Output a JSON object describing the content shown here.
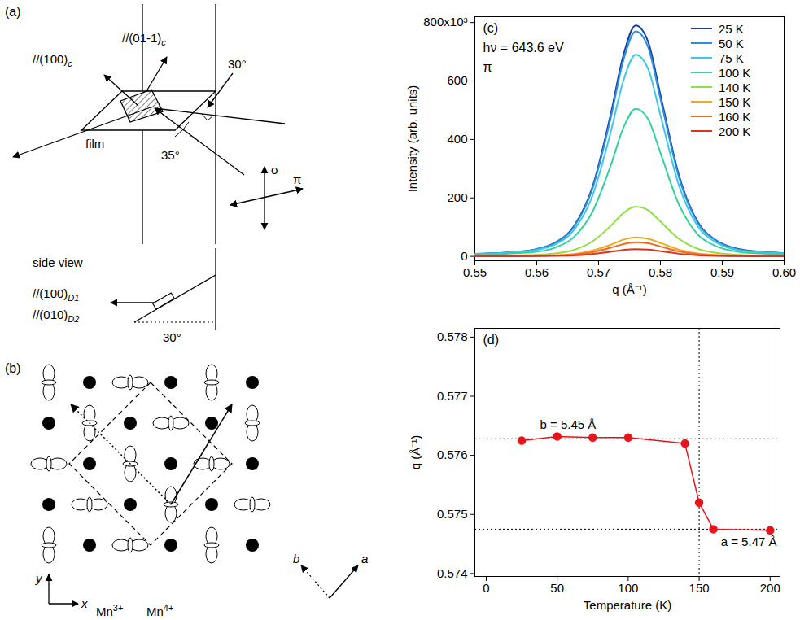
{
  "panels": {
    "a": {
      "label": "(a)",
      "texts": {
        "normal_100": {
          "text": "//(100)",
          "sub": "c"
        },
        "normal_01-1": {
          "text": "//(01-1)",
          "sub": "c"
        },
        "angle_top": "30°",
        "film": "film",
        "angle_bottom": "35°",
        "sigma": "σ",
        "pi": "π",
        "side_view": "side view",
        "side_100": {
          "text": "//(100)",
          "sub": "D1"
        },
        "side_010": {
          "text": "//(010)",
          "sub": "D2"
        },
        "side_angle": "30°"
      }
    },
    "b": {
      "label": "(b)",
      "texts": {
        "y": "y",
        "x": "x",
        "mn3": {
          "text": "Mn",
          "sup": "3+"
        },
        "mn4": {
          "text": "Mn",
          "sup": "4+"
        },
        "b": "b",
        "a": "a"
      }
    }
  },
  "chart_data": [
    {
      "type": "line",
      "annotations": [
        "(c)",
        "hν = 643.6 eV",
        "π"
      ],
      "xlabel": "q (Å⁻¹)",
      "ylabel": "Intensity (arb. units)",
      "x": [
        0.55,
        0.555,
        0.56,
        0.563,
        0.566,
        0.569,
        0.572,
        0.574,
        0.576,
        0.578,
        0.58,
        0.583,
        0.586,
        0.589,
        0.592,
        0.596,
        0.6
      ],
      "xlim": [
        0.55,
        0.6
      ],
      "xticks": [
        0.55,
        0.56,
        0.57,
        0.58,
        0.59,
        {
          "value": 0.6,
          "label": "0.60"
        }
      ],
      "ylim": [
        -15,
        820
      ],
      "yticks": [
        0,
        200,
        400,
        600,
        {
          "value": 800,
          "label": "800x10³"
        }
      ],
      "legend": "top-right",
      "series": [
        {
          "name": "25 K",
          "color": "#1b3fa0",
          "values": [
            9,
            13,
            25,
            47,
            103,
            237,
            490,
            687,
            790,
            735,
            553,
            277,
            119,
            55,
            28,
            16,
            11
          ]
        },
        {
          "name": "50 K",
          "color": "#2a8fe0",
          "values": [
            9,
            13,
            25,
            46,
            100,
            231,
            477,
            670,
            770,
            716,
            539,
            270,
            116,
            54,
            27,
            15,
            11
          ]
        },
        {
          "name": "75 K",
          "color": "#3cc8e8",
          "values": [
            8,
            12,
            22,
            41,
            90,
            207,
            428,
            600,
            690,
            642,
            483,
            242,
            104,
            48,
            24,
            14,
            10
          ]
        },
        {
          "name": "100 K",
          "color": "#34d29a",
          "values": [
            6,
            9,
            16,
            30,
            66,
            152,
            313,
            439,
            505,
            470,
            354,
            177,
            76,
            35,
            18,
            10,
            7
          ]
        },
        {
          "name": "140 K",
          "color": "#8ede48",
          "values": [
            2,
            3,
            5,
            10,
            22,
            51,
            105,
            148,
            170,
            158,
            119,
            60,
            26,
            12,
            6,
            3,
            2
          ]
        },
        {
          "name": "150 K",
          "color": "#f0a820",
          "values": [
            1,
            1,
            2,
            4,
            8,
            20,
            40,
            57,
            65,
            60,
            46,
            23,
            10,
            5,
            2,
            1,
            1
          ]
        },
        {
          "name": "160 K",
          "color": "#f06a1e",
          "values": [
            1,
            1,
            2,
            3,
            6,
            14,
            30,
            42,
            48,
            45,
            34,
            17,
            7,
            3,
            2,
            1,
            1
          ]
        },
        {
          "name": "200 K",
          "color": "#e0301e",
          "values": [
            0,
            0,
            1,
            2,
            3,
            8,
            16,
            22,
            25,
            23,
            18,
            9,
            4,
            2,
            1,
            0,
            0
          ]
        }
      ]
    },
    {
      "type": "line",
      "marker": "circle",
      "color": "#e8141c",
      "annotations": [
        "(d)"
      ],
      "xlabel": "Temperature (K)",
      "ylabel": "q (Å⁻¹)",
      "x": [
        25,
        50,
        75,
        100,
        140,
        150,
        160,
        200
      ],
      "values": [
        0.57625,
        0.57632,
        0.5763,
        0.5763,
        0.5762,
        0.5752,
        0.57475,
        0.57473
      ],
      "xlim": [
        -8,
        207
      ],
      "xticks": [
        0,
        50,
        100,
        150,
        200
      ],
      "ylim": [
        0.57395,
        0.57815
      ],
      "yticks": [
        0.574,
        0.575,
        0.576,
        0.577,
        0.578
      ],
      "reference_lines": [
        {
          "axis": "y",
          "value": 0.57628,
          "label": "b = 5.45 Å",
          "line_style": "dotted"
        },
        {
          "axis": "y",
          "value": 0.57475,
          "label": "a = 5.47 Å",
          "line_style": "dotted"
        },
        {
          "axis": "x",
          "value": 150,
          "line_style": "dotted"
        }
      ]
    }
  ]
}
